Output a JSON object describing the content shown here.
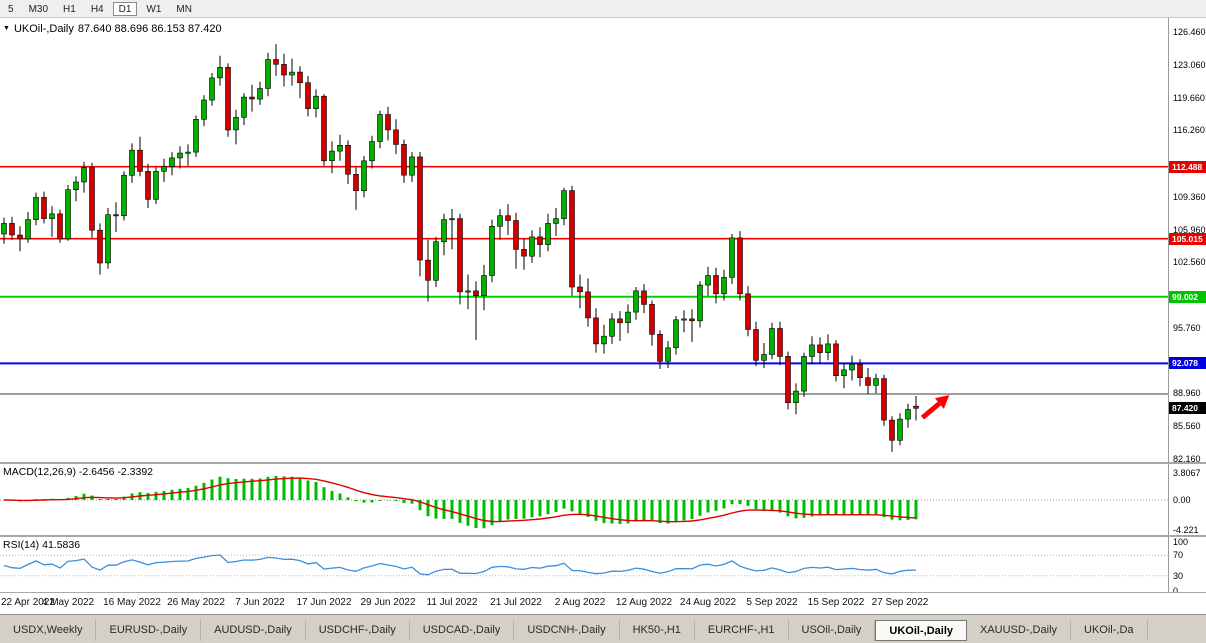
{
  "toolbar": {
    "timeframes": [
      "5",
      "M30",
      "H1",
      "H4",
      "D1",
      "W1",
      "MN"
    ],
    "active": "D1"
  },
  "chart": {
    "symbol_period": "UKOil-,Daily",
    "ohlc": "87.640 88.696 86.153 87.420",
    "price_scale_labels": [
      "126.460",
      "123.060",
      "119.660",
      "116.260",
      "109.360",
      "105.960",
      "102.560",
      "95.760",
      "88.960",
      "85.560",
      "82.160"
    ],
    "lines": [
      {
        "price": 112.488,
        "color": "#ff0000",
        "width": 1.6
      },
      {
        "price": 105.015,
        "color": "#ff0000",
        "width": 1.6
      },
      {
        "price": 99.002,
        "color": "#00d200",
        "width": 2
      },
      {
        "price": 92.078,
        "color": "#0000ff",
        "width": 2
      },
      {
        "price": 88.9,
        "color": "#3c3c3c",
        "width": 1
      }
    ],
    "tags": [
      {
        "text": "112.488",
        "price": 112.488,
        "bg": "#e80000",
        "kind": "level"
      },
      {
        "text": "105.015",
        "price": 105.015,
        "bg": "#e80000",
        "kind": "level"
      },
      {
        "text": "99.002",
        "price": 99.002,
        "bg": "#00c400",
        "kind": "level"
      },
      {
        "text": "92.078",
        "price": 92.078,
        "bg": "#0000e0",
        "kind": "level"
      },
      {
        "text": "87.420",
        "price": 87.42,
        "bg": "#000000",
        "kind": "bid"
      }
    ],
    "arrow": {
      "color": "#ff0000"
    }
  },
  "chart_data": {
    "type": "candlestick",
    "symbol": "UKOil-",
    "timeframe": "Daily",
    "title": "UKOil-,Daily 87.640 88.696 86.153 87.420",
    "last_bar": {
      "open": 87.64,
      "high": 88.696,
      "low": 86.153,
      "close": 87.42
    },
    "ylim": [
      81.85,
      127.91
    ],
    "x_labels": [
      {
        "i": 0,
        "t": "22 Apr 2022"
      },
      {
        "i": 8,
        "t": "4 May 2022"
      },
      {
        "i": 16,
        "t": "16 May 2022"
      },
      {
        "i": 24,
        "t": "26 May 2022"
      },
      {
        "i": 32,
        "t": "7 Jun 2022"
      },
      {
        "i": 40,
        "t": "17 Jun 2022"
      },
      {
        "i": 48,
        "t": "29 Jun 2022"
      },
      {
        "i": 56,
        "t": "11 Jul 2022"
      },
      {
        "i": 64,
        "t": "21 Jul 2022"
      },
      {
        "i": 72,
        "t": "2 Aug 2022"
      },
      {
        "i": 80,
        "t": "12 Aug 2022"
      },
      {
        "i": 88,
        "t": "24 Aug 2022"
      },
      {
        "i": 96,
        "t": "5 Sep 2022"
      },
      {
        "i": 104,
        "t": "15 Sep 2022"
      },
      {
        "i": 112,
        "t": "27 Sep 2022"
      }
    ],
    "candles": [
      [
        105.5,
        107.2,
        104.5,
        106.6
      ],
      [
        106.6,
        107.3,
        104.9,
        105.4
      ],
      [
        105.4,
        106.3,
        103.7,
        105
      ],
      [
        105,
        107.8,
        104.6,
        107
      ],
      [
        107,
        109.8,
        106.4,
        109.3
      ],
      [
        109.3,
        109.9,
        106.6,
        107.1
      ],
      [
        107.1,
        108.4,
        105.2,
        107.6
      ],
      [
        107.6,
        108,
        104.6,
        105
      ],
      [
        105,
        110.6,
        104.8,
        110.1
      ],
      [
        110.1,
        111.5,
        108.9,
        110.9
      ],
      [
        110.9,
        113,
        109.8,
        112.4
      ],
      [
        112.4,
        112.9,
        105.1,
        105.9
      ],
      [
        105.9,
        106.6,
        101.3,
        102.5
      ],
      [
        102.5,
        108.2,
        101.9,
        107.5
      ],
      [
        107.5,
        108.8,
        105.7,
        107.4
      ],
      [
        107.4,
        112,
        106.9,
        111.6
      ],
      [
        111.6,
        114.9,
        110.8,
        114.2
      ],
      [
        114.2,
        115.6,
        111.5,
        112
      ],
      [
        112,
        112.8,
        108.2,
        109.1
      ],
      [
        109.1,
        112.4,
        108.6,
        112
      ],
      [
        112,
        113.3,
        110.9,
        112.5
      ],
      [
        112.5,
        114,
        111.6,
        113.4
      ],
      [
        113.4,
        114.6,
        112.3,
        113.9
      ],
      [
        113.9,
        114.8,
        112.6,
        114
      ],
      [
        114,
        117.8,
        113.5,
        117.4
      ],
      [
        117.4,
        119.9,
        116.7,
        119.4
      ],
      [
        119.4,
        122.2,
        118.8,
        121.7
      ],
      [
        121.7,
        124,
        120.9,
        122.8
      ],
      [
        122.8,
        123.2,
        115.6,
        116.3
      ],
      [
        116.3,
        118.4,
        114.8,
        117.6
      ],
      [
        117.6,
        120.1,
        116.8,
        119.7
      ],
      [
        119.7,
        121,
        118.2,
        119.5
      ],
      [
        119.5,
        121.3,
        118.9,
        120.6
      ],
      [
        120.6,
        124.3,
        119.8,
        123.6
      ],
      [
        123.6,
        125.2,
        121.9,
        123.1
      ],
      [
        123.1,
        124.2,
        120.8,
        122
      ],
      [
        122,
        123.7,
        120.9,
        122.3
      ],
      [
        122.3,
        122.9,
        119.6,
        121.2
      ],
      [
        121.2,
        121.9,
        117.7,
        118.5
      ],
      [
        118.5,
        120.5,
        117.6,
        119.8
      ],
      [
        119.8,
        120,
        112.6,
        113.1
      ],
      [
        113.1,
        115.1,
        111.8,
        114.1
      ],
      [
        114.1,
        115.8,
        113.1,
        114.7
      ],
      [
        114.7,
        115.2,
        110.7,
        111.7
      ],
      [
        111.7,
        112.4,
        108,
        110
      ],
      [
        110,
        113.6,
        109.3,
        113.1
      ],
      [
        113.1,
        115.7,
        112.3,
        115.1
      ],
      [
        115.1,
        118.3,
        114.4,
        117.9
      ],
      [
        117.9,
        118.7,
        115.2,
        116.3
      ],
      [
        116.3,
        117.4,
        113.8,
        114.8
      ],
      [
        114.8,
        115.3,
        110.8,
        111.6
      ],
      [
        111.6,
        114,
        110.9,
        113.5
      ],
      [
        113.5,
        114,
        101.1,
        102.8
      ],
      [
        102.8,
        104.9,
        98.5,
        100.7
      ],
      [
        100.7,
        105.2,
        100,
        104.7
      ],
      [
        104.7,
        107.6,
        103.3,
        107
      ],
      [
        107,
        108.1,
        103.9,
        107.1
      ],
      [
        107.1,
        107.6,
        98.2,
        99.5
      ],
      [
        99.5,
        101.3,
        97.7,
        99.6
      ],
      [
        99.6,
        100.6,
        94.5,
        99.1
      ],
      [
        99.1,
        102.3,
        97.6,
        101.2
      ],
      [
        101.2,
        107,
        100.5,
        106.3
      ],
      [
        106.3,
        108.1,
        104.9,
        107.4
      ],
      [
        107.4,
        108.6,
        105.4,
        106.9
      ],
      [
        106.9,
        107.7,
        101.9,
        103.9
      ],
      [
        103.9,
        105,
        101.8,
        103.2
      ],
      [
        103.2,
        105.9,
        102.5,
        105.2
      ],
      [
        105.2,
        106.2,
        103.1,
        104.4
      ],
      [
        104.4,
        107.6,
        103.7,
        106.6
      ],
      [
        106.6,
        108.2,
        105.3,
        107.1
      ],
      [
        107.1,
        110.3,
        106.4,
        110
      ],
      [
        110,
        110.5,
        99.1,
        100
      ],
      [
        100,
        101.3,
        97.8,
        99.5
      ],
      [
        99.5,
        100.9,
        95.9,
        96.8
      ],
      [
        96.8,
        97.8,
        93.2,
        94.1
      ],
      [
        94.1,
        96.1,
        93.1,
        94.9
      ],
      [
        94.9,
        97.3,
        94.1,
        96.7
      ],
      [
        96.7,
        97.5,
        94.4,
        96.3
      ],
      [
        96.3,
        98.2,
        95.2,
        97.4
      ],
      [
        97.4,
        100,
        96.6,
        99.6
      ],
      [
        99.6,
        100.3,
        97.3,
        98.2
      ],
      [
        98.2,
        98.6,
        93.9,
        95.1
      ],
      [
        95.1,
        95.5,
        91.5,
        92.3
      ],
      [
        92.3,
        94.4,
        91.6,
        93.7
      ],
      [
        93.7,
        97,
        93,
        96.6
      ],
      [
        96.6,
        97.6,
        95.3,
        96.7
      ],
      [
        96.7,
        97.7,
        94.3,
        96.5
      ],
      [
        96.5,
        100.6,
        95.8,
        100.2
      ],
      [
        100.2,
        102.1,
        99.1,
        101.2
      ],
      [
        101.2,
        102,
        98.3,
        99.3
      ],
      [
        99.3,
        101.8,
        98.6,
        101
      ],
      [
        101,
        105.5,
        100.3,
        105.1
      ],
      [
        105.1,
        105.8,
        98.6,
        99.3
      ],
      [
        99.3,
        100.1,
        94.9,
        95.6
      ],
      [
        95.6,
        96.4,
        91.8,
        92.4
      ],
      [
        92.4,
        94.2,
        91.6,
        93
      ],
      [
        93,
        96.3,
        92.5,
        95.7
      ],
      [
        95.7,
        96.4,
        91.9,
        92.8
      ],
      [
        92.8,
        93.3,
        87.3,
        88
      ],
      [
        88,
        90,
        86.8,
        89.2
      ],
      [
        89.2,
        93.2,
        88.6,
        92.8
      ],
      [
        92.8,
        94.9,
        92,
        94
      ],
      [
        94,
        94.8,
        92.1,
        93.2
      ],
      [
        93.2,
        95.1,
        92.4,
        94.1
      ],
      [
        94.1,
        94.5,
        90.2,
        90.8
      ],
      [
        90.8,
        92.1,
        89.5,
        91.4
      ],
      [
        91.4,
        92.9,
        90.3,
        92
      ],
      [
        92,
        92.5,
        89.7,
        90.6
      ],
      [
        90.6,
        91.6,
        88.9,
        89.8
      ],
      [
        89.8,
        91,
        89,
        90.5
      ],
      [
        90.5,
        90.9,
        85.6,
        86.2
      ],
      [
        86.2,
        86.6,
        82.9,
        84.1
      ],
      [
        84.1,
        86.9,
        83.6,
        86.3
      ],
      [
        86.3,
        87.9,
        85.4,
        87.3
      ],
      [
        87.64,
        88.696,
        86.153,
        87.42
      ]
    ]
  },
  "macd": {
    "name": "MACD(12,26,9)",
    "values": "-2.6456 -2.3392",
    "main": -2.6456,
    "signal": -2.3392,
    "scale": [
      {
        "t": "3.8067",
        "v": 3.8067
      },
      {
        "t": "0.00",
        "v": 0
      },
      {
        "t": "-4.221",
        "v": -4.221
      }
    ],
    "hist_color": "#00bb00",
    "signal_color": "#e00000"
  },
  "rsi": {
    "name": "RSI(14)",
    "value": "41.5836",
    "scale": [
      {
        "t": "100",
        "v": 100
      },
      {
        "t": "70",
        "v": 70
      },
      {
        "t": "30",
        "v": 30
      },
      {
        "t": "0",
        "v": 0
      }
    ],
    "levels": [
      70,
      30
    ],
    "line_color": "#3d8fdd"
  },
  "tabs": [
    {
      "label": "USDX,Weekly",
      "active": false
    },
    {
      "label": "EURUSD-,Daily",
      "active": false
    },
    {
      "label": "AUDUSD-,Daily",
      "active": false
    },
    {
      "label": "USDCHF-,Daily",
      "active": false
    },
    {
      "label": "USDCAD-,Daily",
      "active": false
    },
    {
      "label": "USDCNH-,Daily",
      "active": false
    },
    {
      "label": "HK50-,H1",
      "active": false
    },
    {
      "label": "EURCHF-,H1",
      "active": false
    },
    {
      "label": "USOil-,Daily",
      "active": false
    },
    {
      "label": "UKOil-,Daily",
      "active": true
    },
    {
      "label": "XAUUSD-,Daily",
      "active": false
    },
    {
      "label": "UKOil-,Da",
      "active": false
    }
  ]
}
